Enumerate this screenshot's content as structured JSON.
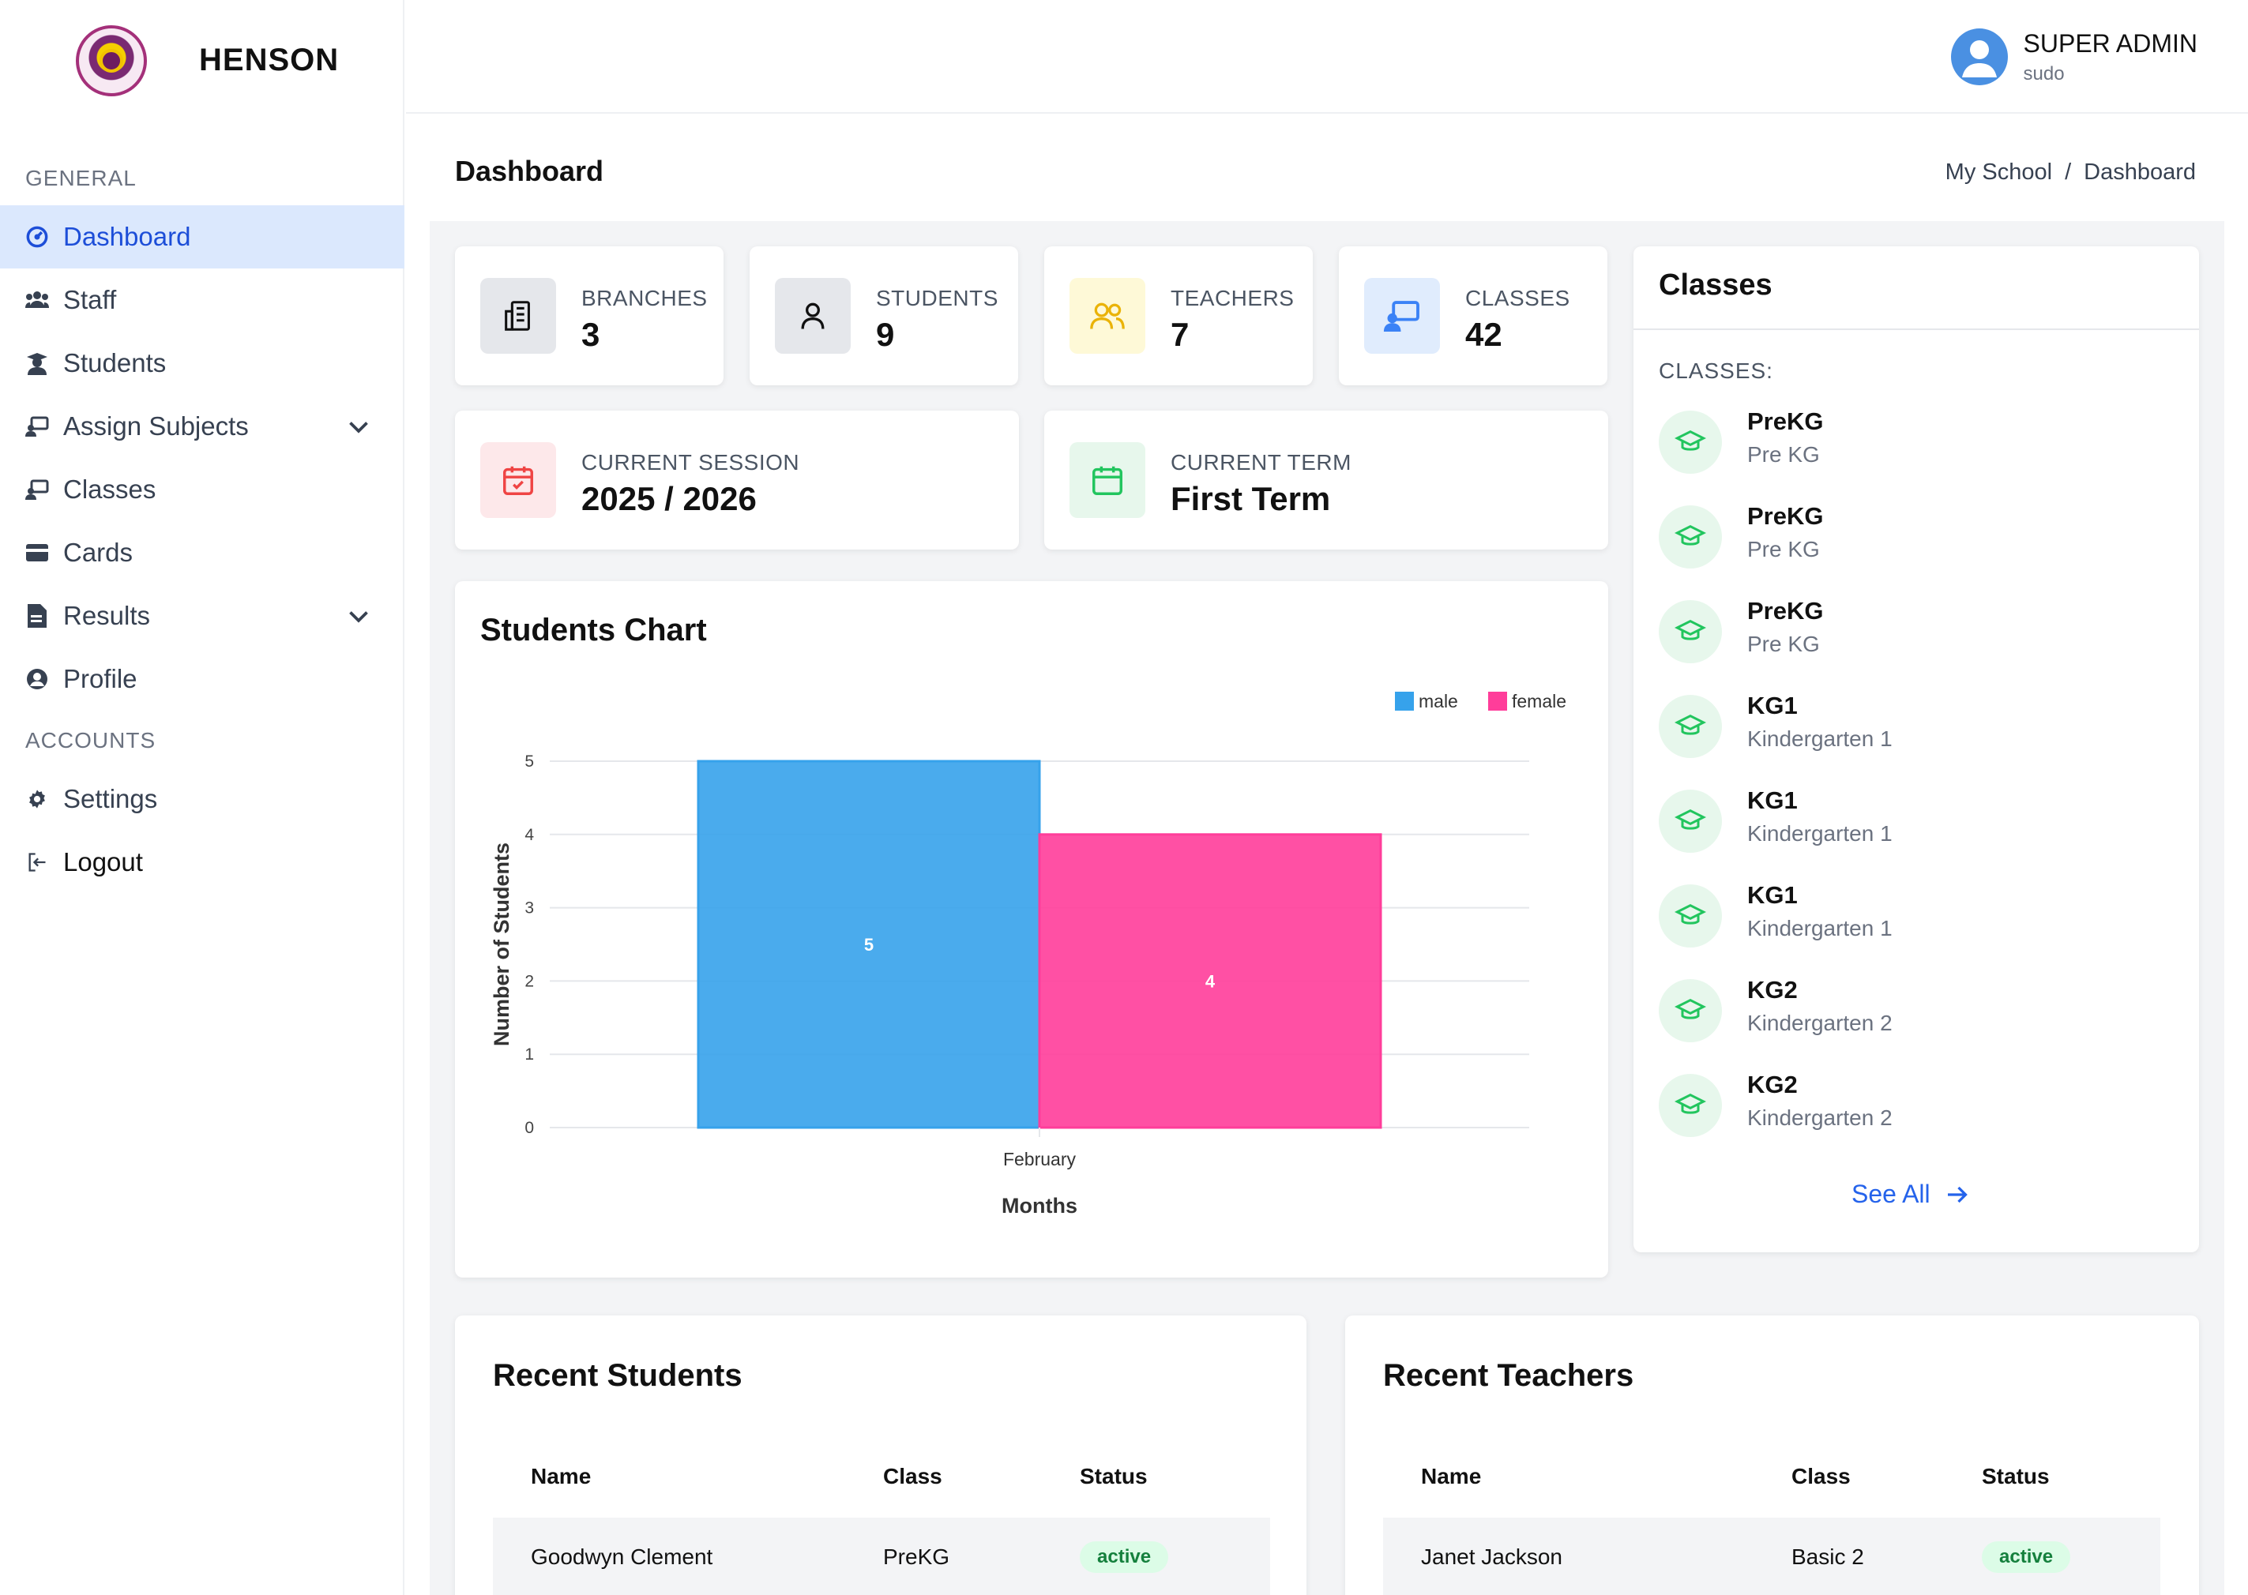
{
  "brand": {
    "name": "HENSON"
  },
  "user": {
    "name": "SUPER ADMIN",
    "role": "sudo"
  },
  "sidebar": {
    "general_label": "GENERAL",
    "accounts_label": "ACCOUNTS",
    "items": [
      {
        "label": "Dashboard",
        "icon": "dashboard-icon"
      },
      {
        "label": "Staff",
        "icon": "staff-icon"
      },
      {
        "label": "Students",
        "icon": "students-icon"
      },
      {
        "label": "Assign Subjects",
        "icon": "assign-subjects-icon"
      },
      {
        "label": "Classes",
        "icon": "classes-icon"
      },
      {
        "label": "Cards",
        "icon": "cards-icon"
      },
      {
        "label": "Results",
        "icon": "results-icon"
      },
      {
        "label": "Profile",
        "icon": "profile-icon"
      }
    ],
    "account_items": [
      {
        "label": "Settings",
        "icon": "gear-icon"
      },
      {
        "label": "Logout",
        "icon": "logout-icon"
      }
    ]
  },
  "page": {
    "title": "Dashboard",
    "breadcrumb": [
      "My School",
      "/",
      "Dashboard"
    ]
  },
  "stats": {
    "branches": {
      "label": "BRANCHES",
      "value": "3"
    },
    "students": {
      "label": "STUDENTS",
      "value": "9"
    },
    "teachers": {
      "label": "TEACHERS",
      "value": "7"
    },
    "classes": {
      "label": "CLASSES",
      "value": "42"
    },
    "session": {
      "label": "CURRENT SESSION",
      "value": "2025 / 2026"
    },
    "term": {
      "label": "CURRENT TERM",
      "value": "First Term"
    }
  },
  "colors": {
    "accent": "#2563eb",
    "male": "#36a2eb",
    "female": "#ff3d9a"
  },
  "students_chart": {
    "title": "Students Chart",
    "chart_data": {
      "type": "bar",
      "categories": [
        "February"
      ],
      "series": [
        {
          "name": "male",
          "values": [
            5
          ]
        },
        {
          "name": "female",
          "values": [
            4
          ]
        }
      ],
      "xlabel": "Months",
      "ylabel": "Number of Students",
      "ylim": [
        0,
        5
      ],
      "yticks": [
        "0",
        "1",
        "2",
        "3",
        "4",
        "5"
      ],
      "grid": true,
      "legend": "top-right"
    }
  },
  "classes_panel": {
    "title": "Classes",
    "subtitle": "CLASSES:",
    "items": [
      {
        "name": "PreKG",
        "sub": "Pre KG"
      },
      {
        "name": "PreKG",
        "sub": "Pre KG"
      },
      {
        "name": "PreKG",
        "sub": "Pre KG"
      },
      {
        "name": "KG1",
        "sub": "Kindergarten 1"
      },
      {
        "name": "KG1",
        "sub": "Kindergarten 1"
      },
      {
        "name": "KG1",
        "sub": "Kindergarten 1"
      },
      {
        "name": "KG2",
        "sub": "Kindergarten 2"
      },
      {
        "name": "KG2",
        "sub": "Kindergarten 2"
      }
    ],
    "see_all": "See All"
  },
  "recent_students": {
    "title": "Recent Students",
    "columns": [
      "Name",
      "Class",
      "Status"
    ],
    "rows": [
      {
        "name": "Goodwyn Clement",
        "class": "PreKG",
        "status": "active"
      }
    ]
  },
  "recent_teachers": {
    "title": "Recent Teachers",
    "columns": [
      "Name",
      "Class",
      "Status"
    ],
    "rows": [
      {
        "name": "Janet Jackson",
        "class": "Basic 2",
        "status": "active"
      }
    ]
  }
}
